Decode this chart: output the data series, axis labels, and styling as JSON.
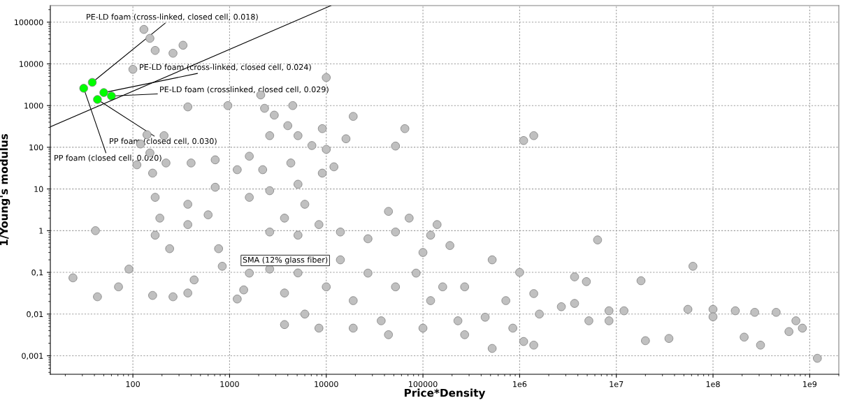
{
  "chart_data": {
    "type": "scatter",
    "xlabel": "Price*Density",
    "ylabel": "1/Young's modulus",
    "log": "xy",
    "grid": true,
    "marker": "circle",
    "xlim": [
      14,
      2000000000
    ],
    "ylim": [
      0.00036,
      250000
    ],
    "xticks": [
      100,
      1000,
      10000,
      100000,
      {
        "value": 1000000,
        "label": "1e6"
      },
      {
        "value": 10000000,
        "label": "1e7"
      },
      {
        "value": 100000000,
        "label": "1e8"
      },
      {
        "value": 1000000000,
        "label": "1e9"
      }
    ],
    "yticks": [
      {
        "value": 0.001,
        "label": "0,001"
      },
      {
        "value": 0.01,
        "label": "0,01"
      },
      {
        "value": 0.1,
        "label": "0,1"
      },
      1,
      10,
      100,
      1000,
      10000,
      100000
    ],
    "series": [
      {
        "color": "#c0c0c0",
        "x": [
          130,
          150,
          330,
          170,
          260,
          100,
          10000,
          370,
          960,
          140,
          110,
          210,
          120,
          2100,
          2300,
          2900,
          4500,
          4000,
          2600,
          5100,
          7100,
          9100,
          10000,
          16000,
          19000,
          52000,
          65000,
          1100000,
          1400000,
          1600,
          710,
          400,
          220,
          1200,
          2200,
          4300,
          5100,
          2600,
          1600,
          710,
          370,
          6000,
          3700,
          2600,
          5100,
          8400,
          14000,
          27000,
          52000,
          72000,
          44000,
          140000,
          100000,
          190000,
          520000,
          1000000,
          3700000,
          4900000,
          6400000,
          18000000,
          62000000,
          150,
          160,
          170,
          190,
          170,
          240,
          370,
          600,
          41,
          24,
          71,
          91,
          160,
          430,
          840,
          1400,
          1200,
          770,
          2600,
          5100,
          10000,
          19000,
          6000,
          3700,
          8400,
          19000,
          37000,
          44000,
          100000,
          230000,
          440000,
          270000,
          850000,
          1100000,
          520000,
          1600000,
          2700000,
          5200000,
          8400000,
          8400000,
          12000000,
          20000000,
          55000000,
          100000000,
          170000000,
          270000000,
          450000000,
          720000000,
          840000000,
          610000000,
          310000000,
          210000000,
          1200000000,
          35000000,
          100000000,
          120000,
          85000,
          160000,
          52000,
          27000,
          14000,
          1600,
          3700,
          370,
          43,
          260,
          120000,
          720000,
          1400000,
          3700000,
          270000,
          1400000,
          9100,
          12000
        ],
        "values": [
          67000,
          41000,
          28000,
          21000,
          18000,
          7400,
          4700,
          930,
          1000,
          200,
          38,
          190,
          120,
          1800,
          860,
          590,
          1000,
          330,
          190,
          190,
          110,
          280,
          89,
          160,
          550,
          107,
          280,
          145,
          190,
          61,
          50,
          42,
          42,
          29,
          29,
          42,
          13,
          9.1,
          6.3,
          11,
          4.3,
          4.3,
          2,
          0.93,
          0.78,
          1.4,
          0.93,
          0.64,
          0.93,
          2,
          2.9,
          1.4,
          0.3,
          0.44,
          0.2,
          0.1,
          0.078,
          0.06,
          0.6,
          0.063,
          0.14,
          73,
          24,
          6.3,
          2,
          0.78,
          0.37,
          1.4,
          2.4,
          1,
          0.074,
          0.045,
          0.12,
          0.028,
          0.066,
          0.14,
          0.038,
          0.023,
          0.37,
          0.12,
          0.097,
          0.045,
          0.021,
          0.01,
          0.0056,
          0.0046,
          0.0046,
          0.0069,
          0.0032,
          0.0046,
          0.0069,
          0.0084,
          0.0032,
          0.0046,
          0.0022,
          0.0015,
          0.01,
          0.015,
          0.0069,
          0.0069,
          0.012,
          0.012,
          0.0023,
          0.013,
          0.013,
          0.012,
          0.011,
          0.011,
          0.0069,
          0.0046,
          0.0038,
          0.0018,
          0.0028,
          0.00087,
          0.0026,
          0.0086,
          0.78,
          0.096,
          0.045,
          0.045,
          0.096,
          0.2,
          0.096,
          0.032,
          0.032,
          0.026,
          0.026,
          0.021,
          0.021,
          0.031,
          0.018,
          0.045,
          0.0018,
          24,
          34
        ]
      },
      {
        "color": "#00ff00",
        "x": [
          38,
          50,
          60,
          43,
          31
        ],
        "values": [
          3600,
          2050,
          1700,
          1400,
          2600
        ]
      },
      {
        "type": "line",
        "marker": "none",
        "color": "#000000",
        "x": [
          14,
          11200
        ],
        "values": [
          310,
          250000
        ]
      }
    ],
    "annotations": [
      {
        "text": "PE-LD foam (cross-linked, closed cell, 0.018)",
        "x": 38,
        "y": 3600
      },
      {
        "text": "PE-LD foam (cross-linked, closed cell, 0.024)",
        "x": 50,
        "y": 2050
      },
      {
        "text": "PE-LD foam (crosslinked, closed cell, 0.029)",
        "x": 60,
        "y": 1700
      },
      {
        "text": "PP foam (closed cell, 0.030)",
        "x": 43,
        "y": 1400
      },
      {
        "text": "PP foam (closed cell, 0.020)",
        "x": 31,
        "y": 2600
      },
      "SMA (12% glass fiber)"
    ]
  }
}
